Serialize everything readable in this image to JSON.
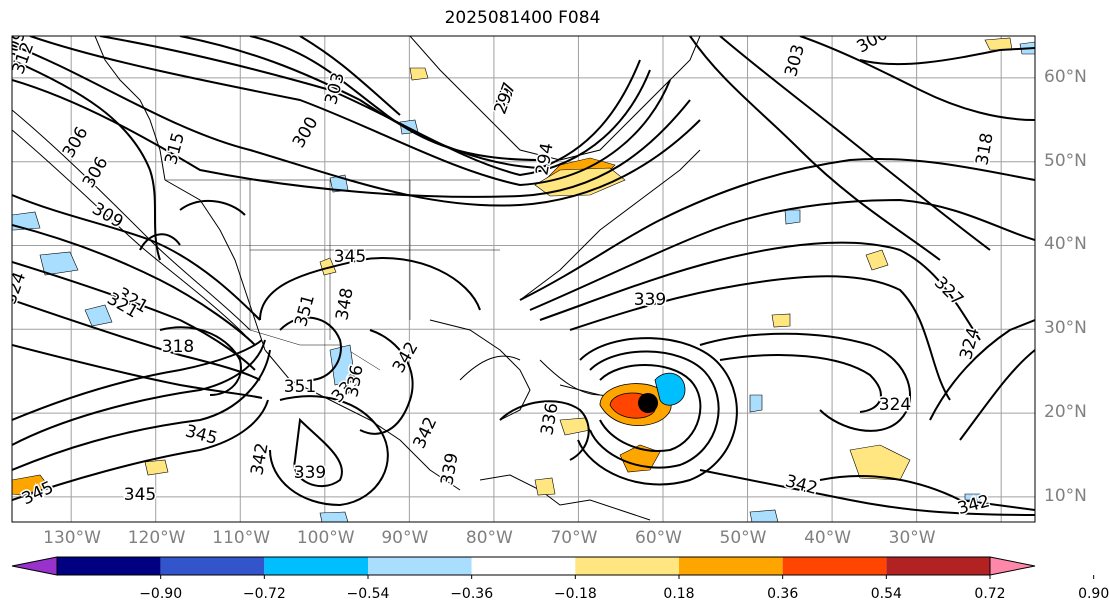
{
  "title": "2025081400 F084",
  "map": {
    "extent_lon": [
      -137,
      -16
    ],
    "extent_lat": [
      7,
      65
    ],
    "graticule_step": 10,
    "lon_labels": [
      "130°W",
      "120°W",
      "110°W",
      "100°W",
      "90°W",
      "80°W",
      "70°W",
      "60°W",
      "50°W",
      "40°W",
      "30°W"
    ],
    "lat_labels": [
      "60°N",
      "50°N",
      "40°N",
      "30°N",
      "20°N",
      "10°N"
    ],
    "contour_labels": [
      "309",
      "312",
      "306",
      "303",
      "300",
      "29",
      "315",
      "318",
      "321",
      "324",
      "327",
      "309",
      "306",
      "303",
      "300",
      "297",
      "294",
      "345",
      "348",
      "351",
      "342",
      "339",
      "336",
      "345",
      "342",
      "339",
      "351",
      "345",
      "342",
      "339",
      "336",
      "324",
      "342",
      "318",
      "324",
      "321",
      "327",
      "342",
      "345",
      "339"
    ],
    "hurricane_center": "black circle near 65°W, 22°N"
  },
  "colorbar": {
    "tick_labels": [
      "−0.90",
      "−0.72",
      "−0.54",
      "−0.36",
      "−0.18",
      "0.18",
      "0.36",
      "0.54",
      "0.72",
      "0.90"
    ],
    "colors": [
      "#9932cc",
      "#000080",
      "#3355cc",
      "#00bfff",
      "#aadeff",
      "#ffffff",
      "#ffe680",
      "#ffa500",
      "#ff4500",
      "#b22222",
      "#ff88aa"
    ]
  }
}
